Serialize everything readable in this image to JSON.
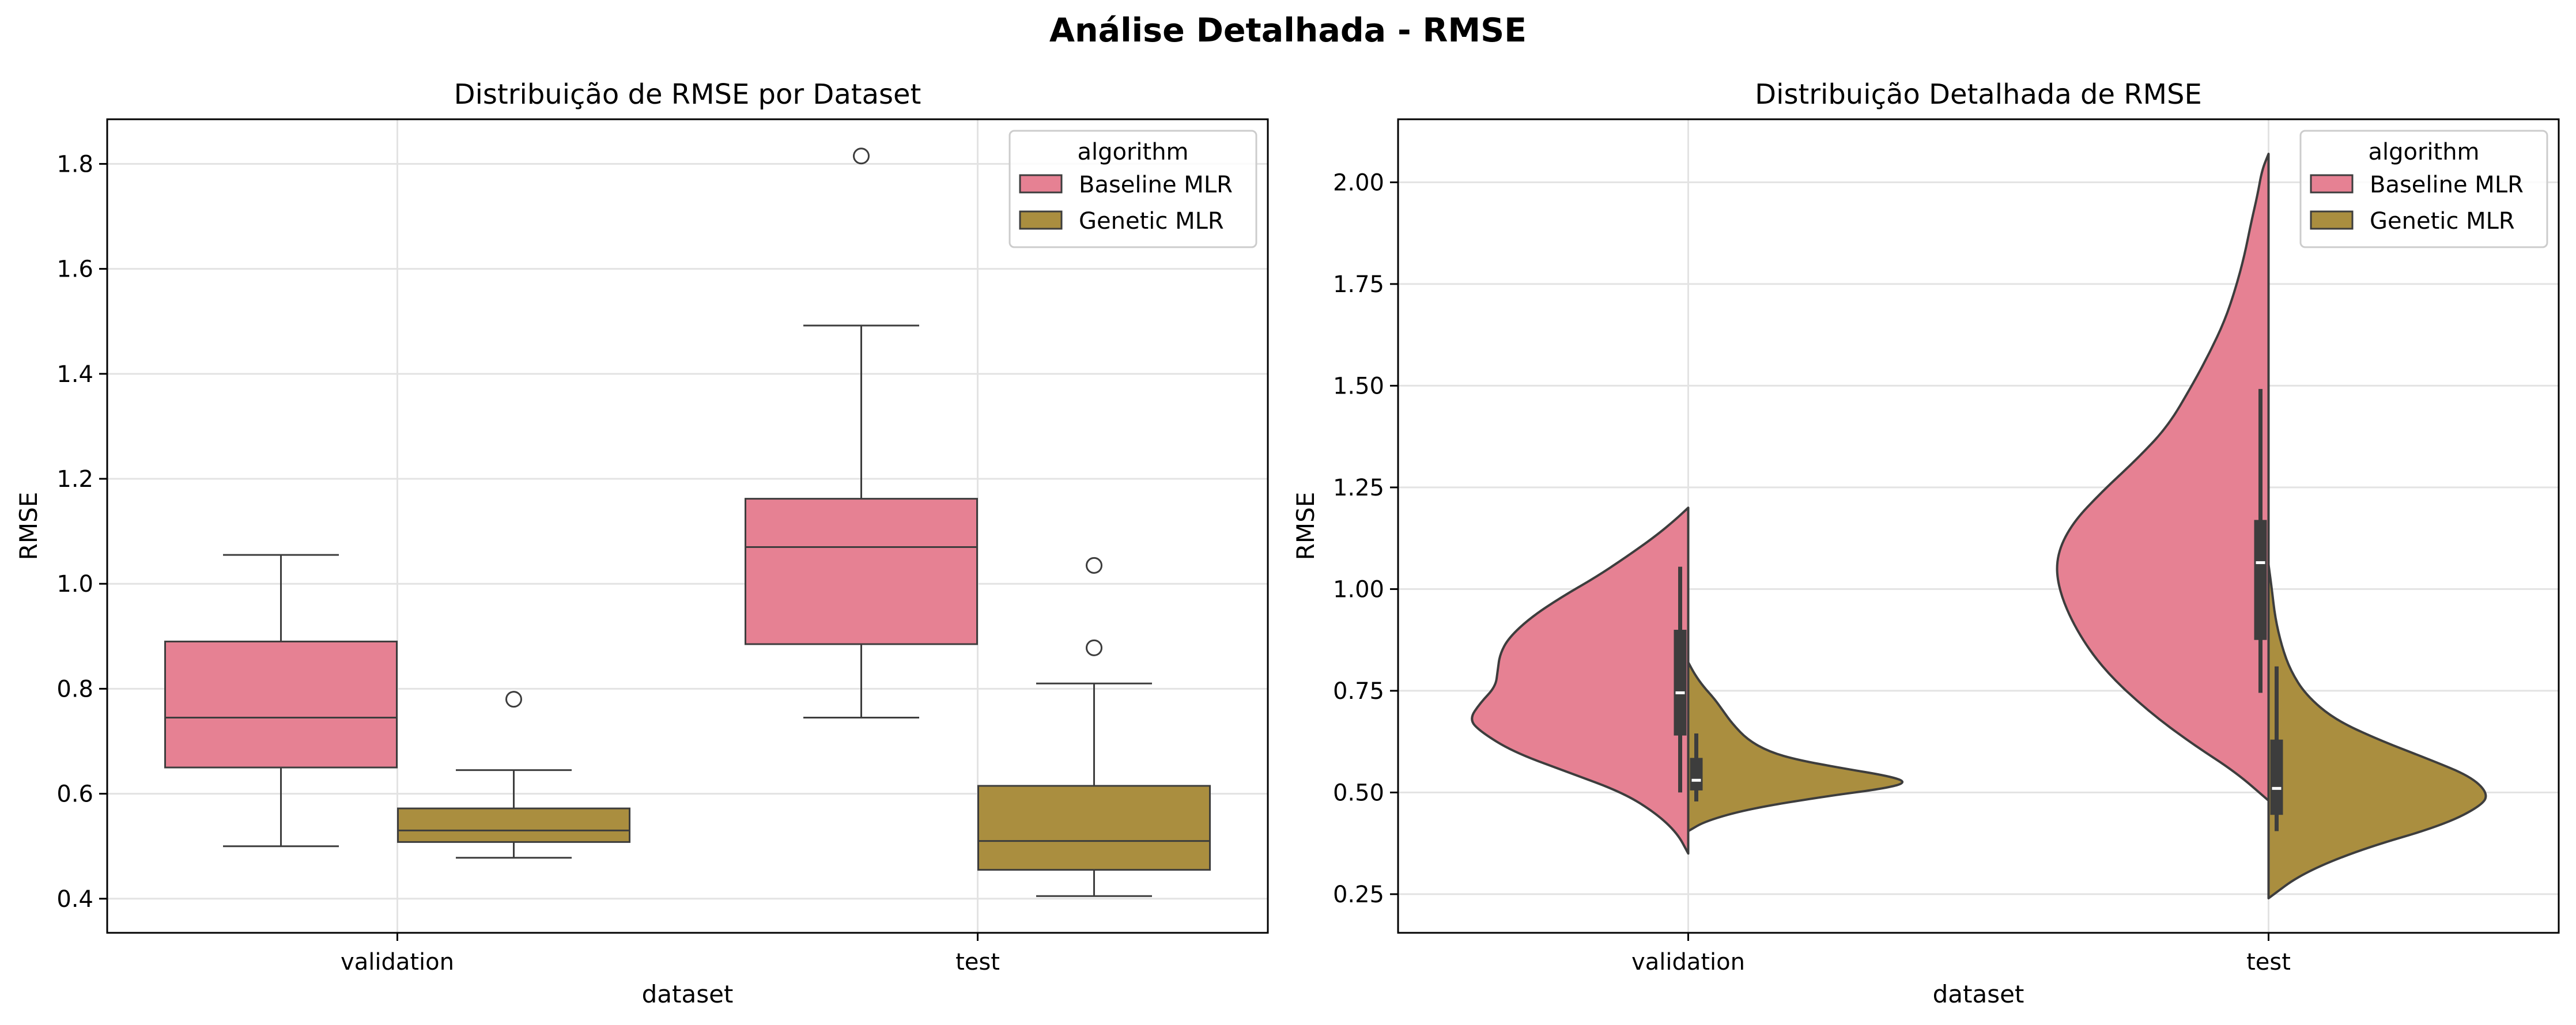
{
  "figure": {
    "title": "Análise Detalhada - RMSE"
  },
  "colors": {
    "baseline": "#E68193",
    "genetic": "#AA8E3F",
    "edge": "#3d3d3d",
    "grid": "#e3e3e3",
    "inner_box": "#3d3d3d"
  },
  "chart_data": [
    {
      "type": "box",
      "title": "Distribuição de RMSE por Dataset",
      "xlabel": "dataset",
      "ylabel": "RMSE",
      "categories": [
        "validation",
        "test"
      ],
      "ylim": [
        0.335,
        1.885
      ],
      "yticks": [
        "0.4",
        "0.6",
        "0.8",
        "1.0",
        "1.2",
        "1.4",
        "1.6",
        "1.8"
      ],
      "grid": true,
      "legend": {
        "title": "algorithm",
        "placement": "top-right",
        "items": [
          "Baseline MLR",
          "Genetic MLR"
        ]
      },
      "series": [
        {
          "name": "Baseline MLR",
          "color": "#E68193",
          "stats": [
            {
              "category": "validation",
              "whislo": 0.5,
              "q1": 0.65,
              "med": 0.745,
              "q3": 0.89,
              "whishi": 1.055,
              "fliers": []
            },
            {
              "category": "test",
              "whislo": 0.745,
              "q1": 0.885,
              "med": 1.07,
              "q3": 1.162,
              "whishi": 1.492,
              "fliers": [
                1.815
              ]
            }
          ]
        },
        {
          "name": "Genetic MLR",
          "color": "#AA8E3F",
          "stats": [
            {
              "category": "validation",
              "whislo": 0.478,
              "q1": 0.508,
              "med": 0.53,
              "q3": 0.572,
              "whishi": 0.645,
              "fliers": [
                0.78
              ]
            },
            {
              "category": "test",
              "whislo": 0.405,
              "q1": 0.455,
              "med": 0.51,
              "q3": 0.615,
              "whishi": 0.81,
              "fliers": [
                0.878,
                1.035
              ]
            }
          ]
        }
      ]
    },
    {
      "type": "violin",
      "title": "Distribuição Detalhada de RMSE",
      "xlabel": "dataset",
      "ylabel": "RMSE",
      "categories": [
        "validation",
        "test"
      ],
      "ylim": [
        0.155,
        2.155
      ],
      "yticks": [
        "0.25",
        "0.50",
        "0.75",
        "1.00",
        "1.25",
        "1.50",
        "1.75",
        "2.00"
      ],
      "split": true,
      "grid": true,
      "legend": {
        "title": "algorithm",
        "placement": "top-right",
        "items": [
          "Baseline MLR",
          "Genetic MLR"
        ]
      },
      "series": [
        {
          "name": "Baseline MLR",
          "side": "left",
          "color": "#E68193",
          "violins": [
            {
              "category": "validation",
              "density": [
                [
                  0.35,
                  0
                ],
                [
                  0.4,
                  0.05
                ],
                [
                  0.45,
                  0.15
                ],
                [
                  0.5,
                  0.3
                ],
                [
                  0.55,
                  0.55
                ],
                [
                  0.6,
                  0.8
                ],
                [
                  0.65,
                  0.95
                ],
                [
                  0.68,
                  1.0
                ],
                [
                  0.72,
                  0.95
                ],
                [
                  0.76,
                  0.88
                ],
                [
                  0.8,
                  0.87
                ],
                [
                  0.84,
                  0.86
                ],
                [
                  0.88,
                  0.82
                ],
                [
                  0.93,
                  0.72
                ],
                [
                  0.98,
                  0.58
                ],
                [
                  1.03,
                  0.42
                ],
                [
                  1.08,
                  0.28
                ],
                [
                  1.13,
                  0.15
                ],
                [
                  1.17,
                  0.06
                ],
                [
                  1.2,
                  0
                ]
              ],
              "box": {
                "whislo": 0.5,
                "q1": 0.64,
                "med": 0.745,
                "q3": 0.9,
                "whishi": 1.055
              }
            },
            {
              "category": "test",
              "density": [
                [
                  0.48,
                  0
                ],
                [
                  0.55,
                  0.15
                ],
                [
                  0.62,
                  0.35
                ],
                [
                  0.7,
                  0.55
                ],
                [
                  0.8,
                  0.75
                ],
                [
                  0.9,
                  0.88
                ],
                [
                  1.0,
                  0.96
                ],
                [
                  1.08,
                  0.97
                ],
                [
                  1.16,
                  0.9
                ],
                [
                  1.24,
                  0.76
                ],
                [
                  1.32,
                  0.6
                ],
                [
                  1.4,
                  0.46
                ],
                [
                  1.5,
                  0.35
                ],
                [
                  1.58,
                  0.27
                ],
                [
                  1.66,
                  0.2
                ],
                [
                  1.74,
                  0.15
                ],
                [
                  1.82,
                  0.11
                ],
                [
                  1.9,
                  0.08
                ],
                [
                  1.97,
                  0.05
                ],
                [
                  2.03,
                  0.03
                ],
                [
                  2.07,
                  0
                ]
              ],
              "box": {
                "whislo": 0.745,
                "q1": 0.875,
                "med": 1.065,
                "q3": 1.17,
                "whishi": 1.492
              }
            }
          ]
        },
        {
          "name": "Genetic MLR",
          "side": "right",
          "color": "#AA8E3F",
          "violins": [
            {
              "category": "validation",
              "density": [
                [
                  0.405,
                  0
                ],
                [
                  0.43,
                  0.08
                ],
                [
                  0.46,
                  0.28
                ],
                [
                  0.49,
                  0.62
                ],
                [
                  0.51,
                  0.9
                ],
                [
                  0.525,
                  1.0
                ],
                [
                  0.54,
                  0.92
                ],
                [
                  0.56,
                  0.7
                ],
                [
                  0.58,
                  0.5
                ],
                [
                  0.6,
                  0.37
                ],
                [
                  0.63,
                  0.27
                ],
                [
                  0.67,
                  0.2
                ],
                [
                  0.7,
                  0.16
                ],
                [
                  0.73,
                  0.12
                ],
                [
                  0.76,
                  0.07
                ],
                [
                  0.79,
                  0.03
                ],
                [
                  0.82,
                  0
                ]
              ],
              "box": {
                "whislo": 0.478,
                "q1": 0.505,
                "med": 0.53,
                "q3": 0.585,
                "whishi": 0.645
              }
            },
            {
              "category": "test",
              "density": [
                [
                  0.24,
                  0
                ],
                [
                  0.3,
                  0.15
                ],
                [
                  0.36,
                  0.42
                ],
                [
                  0.42,
                  0.8
                ],
                [
                  0.47,
                  0.98
                ],
                [
                  0.5,
                  1.0
                ],
                [
                  0.54,
                  0.92
                ],
                [
                  0.58,
                  0.74
                ],
                [
                  0.63,
                  0.5
                ],
                [
                  0.68,
                  0.3
                ],
                [
                  0.74,
                  0.17
                ],
                [
                  0.8,
                  0.1
                ],
                [
                  0.86,
                  0.06
                ],
                [
                  0.93,
                  0.03
                ],
                [
                  1.0,
                  0.015
                ],
                [
                  1.06,
                  0
                ]
              ],
              "box": {
                "whislo": 0.405,
                "q1": 0.445,
                "med": 0.51,
                "q3": 0.63,
                "whishi": 0.81
              }
            }
          ]
        }
      ]
    }
  ]
}
